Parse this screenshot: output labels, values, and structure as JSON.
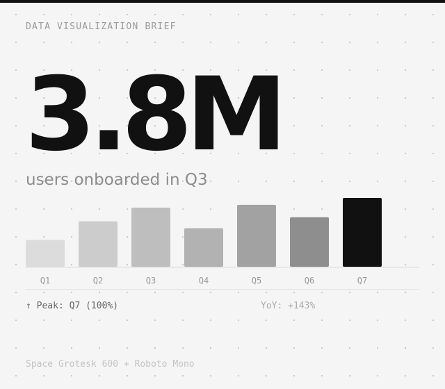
{
  "chart_data": {
    "type": "bar",
    "kicker": "DATA VISUALIZATION BRIEF",
    "headline": "3.8M",
    "subtitle": "users onboarded in Q3",
    "categories": [
      "Q1",
      "Q2",
      "Q3",
      "Q4",
      "Q5",
      "Q6",
      "Q7"
    ],
    "values": [
      39,
      66,
      86,
      56,
      90,
      72,
      100
    ],
    "colors": [
      "#dcdcdc",
      "#cccccc",
      "#bebebe",
      "#b2b2b2",
      "#a2a2a2",
      "#8e8e8e",
      "#111111"
    ],
    "ylim": [
      0,
      100
    ],
    "annotations": [
      "↑ Peak: Q7 (100%)",
      "YoY: +143%"
    ],
    "footer": "Space Grotesk 600 + Roboto Mono"
  }
}
